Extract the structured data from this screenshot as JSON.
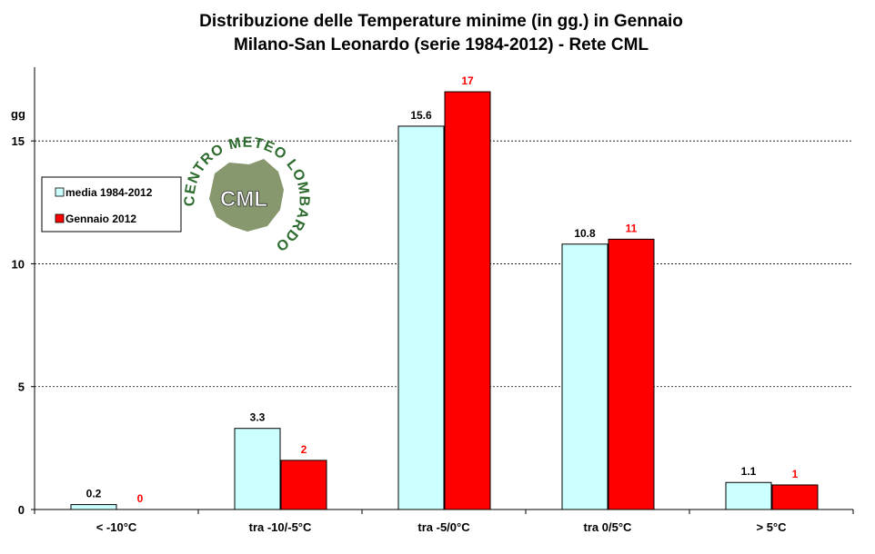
{
  "chart_data": {
    "type": "bar",
    "title": "Distribuzione  delle  Temperature  minime  (in  gg.)  in  Gennaio",
    "subtitle": "Milano-San  Leonardo  (serie  1984-2012)  - Rete  CML",
    "ylabel": "gg",
    "xlabel": "",
    "ylim": [
      0,
      18
    ],
    "yticks": [
      0,
      5,
      10,
      15
    ],
    "grid": true,
    "legend_position": "top-left",
    "categories": [
      "< -10°C",
      "tra -10/-5°C",
      "tra -5/0°C",
      "tra 0/5°C",
      "> 5°C"
    ],
    "series": [
      {
        "name": "media 1984-2012",
        "color": "#ccffff",
        "label_color": "#000000",
        "values": [
          0.2,
          3.3,
          15.6,
          10.8,
          1.1
        ],
        "labels": [
          "0.2",
          "3.3",
          "15.6",
          "10.8",
          "1.1"
        ]
      },
      {
        "name": "Gennaio 2012",
        "color": "#ff0000",
        "label_color": "#ff0000",
        "values": [
          0,
          2,
          17,
          11,
          1
        ],
        "labels": [
          "0",
          "2",
          "17",
          "11",
          "1"
        ]
      }
    ]
  },
  "logo": {
    "icon": "cml-logo-icon",
    "center_text": "CML",
    "ring_text": "CENTRO METEO LOMBARDO",
    "ring_color": "#2e6b2e",
    "map_color": "#7a8c5e"
  }
}
